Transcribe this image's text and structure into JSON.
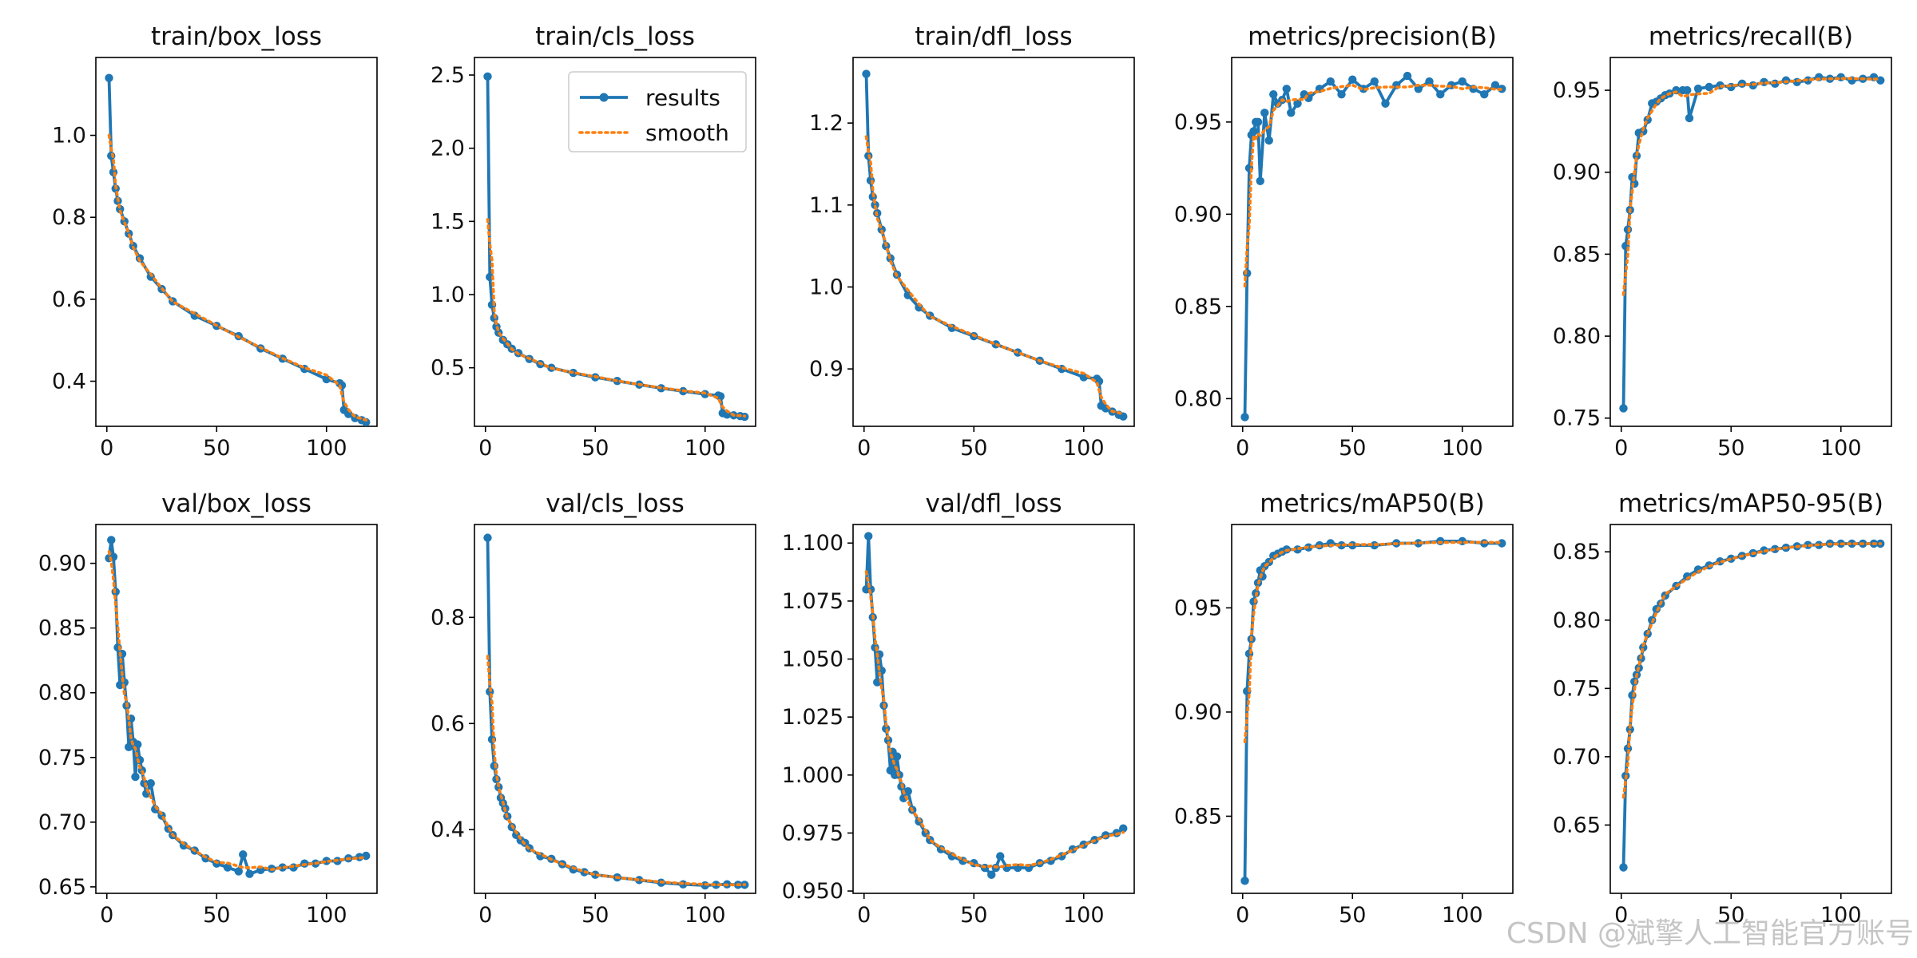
{
  "colors": {
    "results": "#1f77b4",
    "smooth": "#ff7f0e",
    "frame": "#000000"
  },
  "legend": {
    "results_label": "results",
    "smooth_label": "smooth",
    "placement": "upper-right of train/cls_loss"
  },
  "watermark": "CSDN @斌擎人工智能官方账号",
  "chart_data": [
    {
      "type": "line",
      "title": "train/box_loss",
      "xlim": [
        -5,
        123
      ],
      "ylim": [
        0.29,
        1.19
      ],
      "xticks": [
        0,
        50,
        100
      ],
      "yticks": [
        0.4,
        0.6,
        0.8,
        1.0
      ],
      "yfmt": 1,
      "series": [
        {
          "name": "results",
          "x": [
            1,
            2,
            3,
            4,
            5,
            6,
            8,
            10,
            12,
            15,
            20,
            25,
            30,
            40,
            50,
            60,
            70,
            80,
            90,
            100,
            106,
            107,
            108,
            110,
            113,
            116,
            118
          ],
          "values": [
            1.14,
            0.95,
            0.91,
            0.87,
            0.84,
            0.82,
            0.79,
            0.76,
            0.73,
            0.7,
            0.655,
            0.625,
            0.595,
            0.56,
            0.535,
            0.51,
            0.48,
            0.455,
            0.43,
            0.405,
            0.395,
            0.39,
            0.33,
            0.32,
            0.31,
            0.305,
            0.3
          ]
        }
      ]
    },
    {
      "type": "line",
      "title": "train/cls_loss",
      "xlim": [
        -5,
        123
      ],
      "ylim": [
        0.1,
        2.62
      ],
      "xticks": [
        0,
        50,
        100
      ],
      "yticks": [
        0.5,
        1.0,
        1.5,
        2.0,
        2.5
      ],
      "yfmt": 1,
      "legend": true,
      "series": [
        {
          "name": "results",
          "x": [
            1,
            2,
            3,
            4,
            5,
            6,
            8,
            10,
            12,
            15,
            20,
            25,
            30,
            40,
            50,
            60,
            70,
            80,
            90,
            100,
            106,
            107,
            108,
            110,
            113,
            116,
            118
          ],
          "values": [
            2.49,
            1.12,
            0.93,
            0.84,
            0.78,
            0.74,
            0.69,
            0.66,
            0.63,
            0.6,
            0.56,
            0.525,
            0.5,
            0.465,
            0.435,
            0.41,
            0.385,
            0.36,
            0.34,
            0.32,
            0.31,
            0.305,
            0.19,
            0.18,
            0.175,
            0.17,
            0.165
          ]
        }
      ]
    },
    {
      "type": "line",
      "title": "train/dfl_loss",
      "xlim": [
        -5,
        123
      ],
      "ylim": [
        0.83,
        1.28
      ],
      "xticks": [
        0,
        50,
        100
      ],
      "yticks": [
        0.9,
        1.0,
        1.1,
        1.2
      ],
      "yfmt": 1,
      "series": [
        {
          "name": "results",
          "x": [
            1,
            2,
            3,
            4,
            5,
            6,
            8,
            10,
            12,
            15,
            20,
            25,
            30,
            40,
            50,
            60,
            70,
            80,
            90,
            100,
            106,
            107,
            108,
            110,
            113,
            116,
            118
          ],
          "values": [
            1.26,
            1.16,
            1.13,
            1.11,
            1.1,
            1.09,
            1.07,
            1.05,
            1.035,
            1.015,
            0.99,
            0.975,
            0.965,
            0.95,
            0.94,
            0.93,
            0.92,
            0.91,
            0.9,
            0.89,
            0.888,
            0.885,
            0.855,
            0.852,
            0.848,
            0.844,
            0.842
          ]
        }
      ]
    },
    {
      "type": "line",
      "title": "metrics/precision(B)",
      "xlim": [
        -5,
        123
      ],
      "ylim": [
        0.785,
        0.985
      ],
      "xticks": [
        0,
        50,
        100
      ],
      "yticks": [
        0.8,
        0.85,
        0.9,
        0.95
      ],
      "yfmt": 2,
      "series": [
        {
          "name": "results",
          "x": [
            1,
            2,
            3,
            4,
            5,
            6,
            7,
            8,
            10,
            12,
            14,
            16,
            18,
            20,
            22,
            25,
            28,
            30,
            35,
            40,
            45,
            50,
            55,
            60,
            65,
            70,
            75,
            80,
            85,
            90,
            95,
            100,
            105,
            110,
            115,
            118
          ],
          "values": [
            0.79,
            0.868,
            0.925,
            0.943,
            0.945,
            0.95,
            0.95,
            0.918,
            0.955,
            0.94,
            0.965,
            0.96,
            0.962,
            0.968,
            0.955,
            0.96,
            0.965,
            0.963,
            0.968,
            0.972,
            0.965,
            0.973,
            0.968,
            0.972,
            0.96,
            0.97,
            0.975,
            0.968,
            0.972,
            0.965,
            0.97,
            0.972,
            0.968,
            0.965,
            0.97,
            0.968
          ]
        }
      ]
    },
    {
      "type": "line",
      "title": "metrics/recall(B)",
      "xlim": [
        -5,
        123
      ],
      "ylim": [
        0.745,
        0.97
      ],
      "xticks": [
        0,
        50,
        100
      ],
      "yticks": [
        0.75,
        0.8,
        0.85,
        0.9,
        0.95
      ],
      "yfmt": 2,
      "series": [
        {
          "name": "results",
          "x": [
            1,
            2,
            3,
            4,
            5,
            6,
            7,
            8,
            10,
            12,
            14,
            16,
            18,
            20,
            22,
            25,
            28,
            30,
            31,
            35,
            40,
            45,
            50,
            55,
            60,
            65,
            70,
            75,
            80,
            85,
            90,
            95,
            100,
            105,
            110,
            115,
            118
          ],
          "values": [
            0.756,
            0.855,
            0.865,
            0.877,
            0.897,
            0.893,
            0.91,
            0.924,
            0.925,
            0.932,
            0.942,
            0.943,
            0.945,
            0.947,
            0.948,
            0.95,
            0.95,
            0.95,
            0.933,
            0.951,
            0.952,
            0.953,
            0.952,
            0.954,
            0.953,
            0.955,
            0.954,
            0.956,
            0.955,
            0.956,
            0.958,
            0.957,
            0.958,
            0.956,
            0.957,
            0.958,
            0.956
          ]
        }
      ]
    },
    {
      "type": "line",
      "title": "val/box_loss",
      "xlim": [
        -5,
        123
      ],
      "ylim": [
        0.645,
        0.93
      ],
      "xticks": [
        0,
        50,
        100
      ],
      "yticks": [
        0.65,
        0.7,
        0.75,
        0.8,
        0.85,
        0.9
      ],
      "yfmt": 2,
      "series": [
        {
          "name": "results",
          "x": [
            1,
            2,
            3,
            4,
            5,
            6,
            7,
            8,
            9,
            10,
            11,
            12,
            13,
            14,
            15,
            16,
            17,
            18,
            20,
            22,
            25,
            28,
            30,
            35,
            40,
            45,
            50,
            55,
            60,
            62,
            65,
            70,
            75,
            80,
            85,
            90,
            95,
            100,
            105,
            110,
            115,
            118
          ],
          "values": [
            0.904,
            0.918,
            0.905,
            0.878,
            0.835,
            0.806,
            0.83,
            0.808,
            0.79,
            0.758,
            0.78,
            0.762,
            0.735,
            0.76,
            0.748,
            0.74,
            0.73,
            0.722,
            0.73,
            0.71,
            0.705,
            0.695,
            0.69,
            0.682,
            0.678,
            0.672,
            0.668,
            0.665,
            0.662,
            0.675,
            0.66,
            0.663,
            0.664,
            0.665,
            0.665,
            0.668,
            0.668,
            0.67,
            0.67,
            0.672,
            0.673,
            0.674
          ]
        }
      ]
    },
    {
      "type": "line",
      "title": "val/cls_loss",
      "xlim": [
        -5,
        123
      ],
      "ylim": [
        0.28,
        0.975
      ],
      "xticks": [
        0,
        50,
        100
      ],
      "yticks": [
        0.4,
        0.6,
        0.8
      ],
      "yfmt": 1,
      "series": [
        {
          "name": "results",
          "x": [
            1,
            2,
            3,
            4,
            5,
            6,
            7,
            8,
            9,
            10,
            12,
            14,
            16,
            18,
            20,
            25,
            30,
            35,
            40,
            45,
            50,
            60,
            70,
            80,
            90,
            100,
            105,
            110,
            115,
            118
          ],
          "values": [
            0.95,
            0.66,
            0.57,
            0.52,
            0.495,
            0.48,
            0.46,
            0.45,
            0.44,
            0.425,
            0.405,
            0.39,
            0.38,
            0.375,
            0.365,
            0.35,
            0.345,
            0.335,
            0.325,
            0.32,
            0.315,
            0.31,
            0.305,
            0.3,
            0.297,
            0.295,
            0.296,
            0.297,
            0.296,
            0.296
          ]
        }
      ]
    },
    {
      "type": "line",
      "title": "val/dfl_loss",
      "xlim": [
        -5,
        123
      ],
      "ylim": [
        0.949,
        1.108
      ],
      "xticks": [
        0,
        50,
        100
      ],
      "yticks": [
        0.95,
        0.975,
        1.0,
        1.025,
        1.05,
        1.075,
        1.1
      ],
      "yfmt": 3,
      "series": [
        {
          "name": "results",
          "x": [
            1,
            2,
            3,
            4,
            5,
            6,
            7,
            8,
            9,
            10,
            11,
            12,
            13,
            14,
            15,
            16,
            17,
            18,
            20,
            22,
            25,
            28,
            30,
            35,
            40,
            45,
            50,
            55,
            58,
            60,
            62,
            65,
            70,
            75,
            80,
            85,
            90,
            95,
            100,
            105,
            110,
            115,
            118
          ],
          "values": [
            1.08,
            1.103,
            1.08,
            1.068,
            1.055,
            1.04,
            1.052,
            1.045,
            1.03,
            1.02,
            1.015,
            1.002,
            1.01,
            1.0,
            1.008,
            1.0,
            0.995,
            0.99,
            0.993,
            0.985,
            0.98,
            0.975,
            0.972,
            0.968,
            0.965,
            0.963,
            0.962,
            0.96,
            0.957,
            0.96,
            0.965,
            0.96,
            0.96,
            0.96,
            0.962,
            0.963,
            0.965,
            0.968,
            0.97,
            0.972,
            0.974,
            0.975,
            0.977
          ]
        }
      ]
    },
    {
      "type": "line",
      "title": "metrics/mAP50(B)",
      "xlim": [
        -5,
        123
      ],
      "ylim": [
        0.813,
        0.99
      ],
      "xticks": [
        0,
        50,
        100
      ],
      "yticks": [
        0.85,
        0.9,
        0.95
      ],
      "yfmt": 2,
      "series": [
        {
          "name": "results",
          "x": [
            1,
            2,
            3,
            4,
            5,
            6,
            7,
            8,
            9,
            10,
            12,
            14,
            16,
            18,
            20,
            25,
            30,
            35,
            40,
            45,
            50,
            60,
            70,
            80,
            90,
            100,
            110,
            118
          ],
          "values": [
            0.819,
            0.91,
            0.928,
            0.935,
            0.953,
            0.957,
            0.962,
            0.968,
            0.965,
            0.97,
            0.972,
            0.975,
            0.976,
            0.977,
            0.978,
            0.978,
            0.979,
            0.98,
            0.981,
            0.98,
            0.98,
            0.98,
            0.981,
            0.981,
            0.982,
            0.982,
            0.981,
            0.981
          ]
        }
      ]
    },
    {
      "type": "line",
      "title": "metrics/mAP50-95(B)",
      "xlim": [
        -5,
        123
      ],
      "ylim": [
        0.6,
        0.87
      ],
      "xticks": [
        0,
        50,
        100
      ],
      "yticks": [
        0.65,
        0.7,
        0.75,
        0.8,
        0.85
      ],
      "yfmt": 2,
      "series": [
        {
          "name": "results",
          "x": [
            1,
            2,
            3,
            4,
            5,
            6,
            7,
            8,
            9,
            10,
            12,
            14,
            16,
            18,
            20,
            25,
            30,
            35,
            40,
            45,
            50,
            55,
            60,
            65,
            70,
            75,
            80,
            85,
            90,
            95,
            100,
            105,
            110,
            115,
            118
          ],
          "values": [
            0.619,
            0.686,
            0.706,
            0.72,
            0.745,
            0.755,
            0.76,
            0.765,
            0.772,
            0.78,
            0.79,
            0.8,
            0.808,
            0.812,
            0.818,
            0.825,
            0.832,
            0.837,
            0.84,
            0.843,
            0.845,
            0.847,
            0.849,
            0.851,
            0.852,
            0.853,
            0.854,
            0.855,
            0.855,
            0.856,
            0.856,
            0.856,
            0.856,
            0.856,
            0.856
          ]
        }
      ]
    }
  ]
}
